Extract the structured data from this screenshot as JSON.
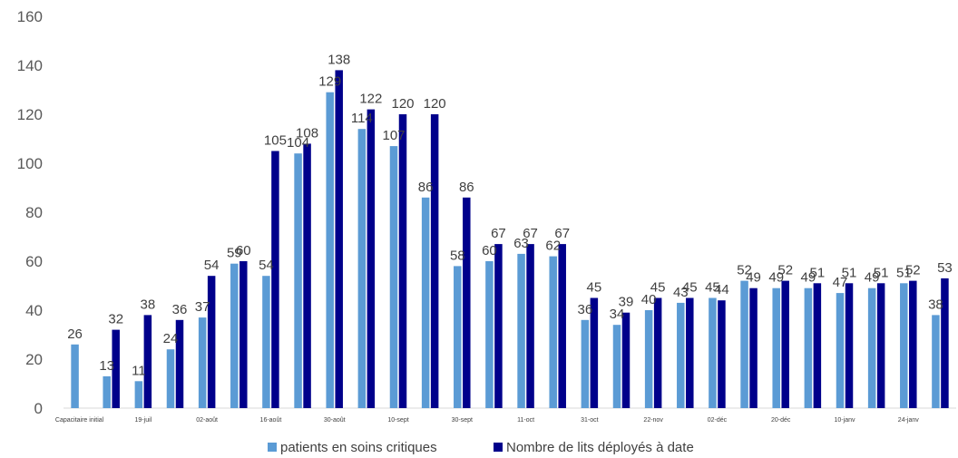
{
  "chart_data": {
    "type": "bar",
    "title": "",
    "xlabel": "",
    "ylabel": "",
    "ylim": [
      0,
      160
    ],
    "yticks": [
      0,
      20,
      40,
      60,
      80,
      100,
      120,
      140,
      160
    ],
    "grid": false,
    "legend_position": "bottom",
    "categories": [
      "Capacitaire initial",
      "",
      "19-juil",
      "",
      "02-août",
      "",
      "16-août",
      "",
      "30-août",
      "",
      "10-sept",
      "",
      "30-sept",
      "",
      "11-oct",
      "",
      "31-oct",
      "",
      "22-nov",
      "",
      "02-déc",
      "",
      "20-déc",
      "",
      "10-janv",
      "",
      "24-janv",
      ""
    ],
    "series": [
      {
        "name": "patients en soins critiques",
        "color": "#5b9bd5",
        "values": [
          26,
          13,
          11,
          24,
          37,
          59,
          54,
          104,
          129,
          114,
          107,
          86,
          58,
          60,
          63,
          62,
          36,
          34,
          40,
          43,
          45,
          52,
          49,
          49,
          47,
          49,
          51,
          38
        ]
      },
      {
        "name": "Nombre de lits déployés à date",
        "color": "#00008b",
        "values": [
          null,
          32,
          38,
          36,
          54,
          60,
          105,
          108,
          138,
          122,
          120,
          120,
          86,
          67,
          67,
          67,
          45,
          39,
          45,
          45,
          44,
          49,
          52,
          51,
          51,
          51,
          52,
          53
        ]
      }
    ]
  }
}
